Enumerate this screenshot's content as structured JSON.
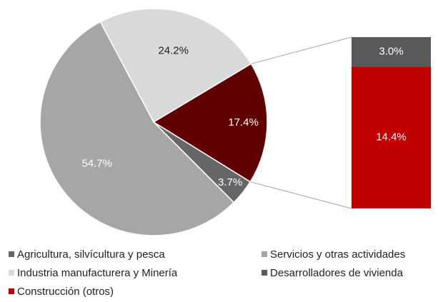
{
  "chart_data": {
    "type": "pie_of_bar",
    "categories": [
      "Industria manufacturera y Minería",
      null,
      "Agricultura, silvícultura y pesca",
      "Servicios y otras actividades"
    ],
    "values": [
      24.2,
      17.4,
      3.7,
      54.7
    ],
    "value_labels": [
      "24.2%",
      "17.4%",
      "3.7%",
      "54.7%"
    ],
    "colors": [
      "#d9d9d9",
      "#600000",
      "#666666",
      "#a6a6a6"
    ],
    "bar": {
      "categories": [
        "Desarrolladores de vivienda",
        "Construcción (otros)"
      ],
      "values": [
        3.0,
        14.4
      ],
      "value_labels": [
        "3.0%",
        "14.4%"
      ],
      "colors": [
        "#595959",
        "#c00000"
      ]
    }
  }
}
